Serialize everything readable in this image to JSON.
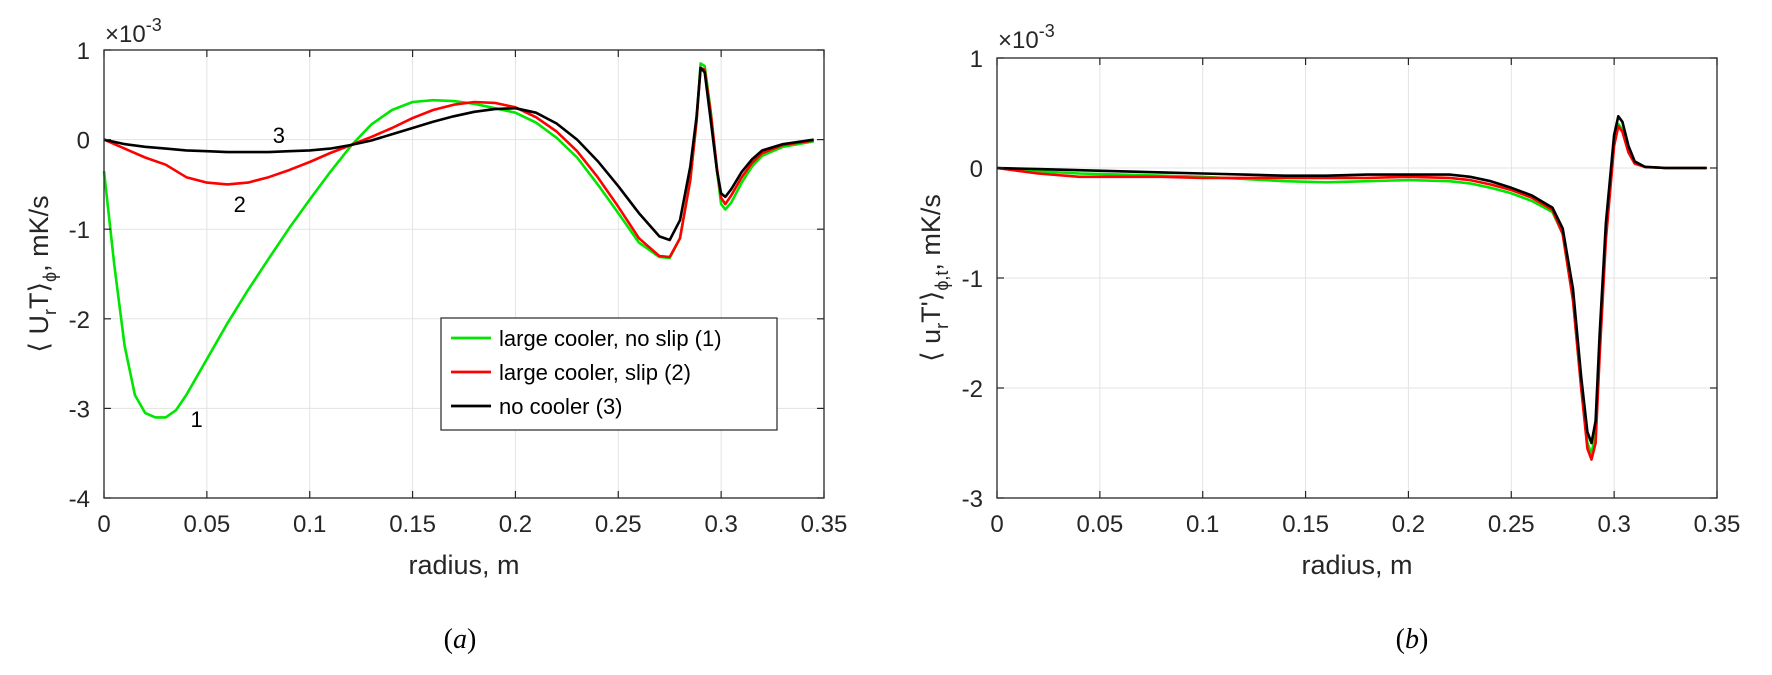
{
  "chart_data": [
    {
      "type": "line",
      "panel_caption": "a",
      "exponent_label": "×10",
      "exponent_power": "-3",
      "xlabel": "radius, m",
      "ylabel": "⟨ U",
      "ylabel_sub": "r",
      "ylabel_mid": "T⟩",
      "ylabel_sub2": "ϕ",
      "ylabel_tail": ", mK/s",
      "xlim": [
        0,
        0.35
      ],
      "ylim": [
        -4,
        1
      ],
      "xticks": [
        0,
        0.05,
        0.1,
        0.15,
        0.2,
        0.25,
        0.3,
        0.35
      ],
      "xtick_labels": [
        "0",
        "0.05",
        "0.1",
        "0.15",
        "0.2",
        "0.25",
        "0.3",
        "0.35"
      ],
      "yticks": [
        -4,
        -3,
        -2,
        -1,
        0,
        1
      ],
      "ytick_labels": [
        "-4",
        "-3",
        "-2",
        "-1",
        "0",
        "1"
      ],
      "grid": true,
      "legend_placement": "lower-right",
      "annotations": [
        {
          "text": "1",
          "x": 0.045,
          "y": -3.12
        },
        {
          "text": "2",
          "x": 0.066,
          "y": -0.72
        },
        {
          "text": "3",
          "x": 0.085,
          "y": 0.05
        }
      ],
      "series": [
        {
          "name": "large cooler, no slip (1)",
          "color": "#00e600",
          "x": [
            0,
            0.005,
            0.01,
            0.015,
            0.02,
            0.025,
            0.03,
            0.035,
            0.04,
            0.05,
            0.06,
            0.07,
            0.08,
            0.09,
            0.1,
            0.11,
            0.12,
            0.13,
            0.14,
            0.15,
            0.16,
            0.17,
            0.18,
            0.19,
            0.2,
            0.21,
            0.22,
            0.23,
            0.24,
            0.25,
            0.26,
            0.27,
            0.275,
            0.28,
            0.285,
            0.288,
            0.29,
            0.292,
            0.295,
            0.298,
            0.3,
            0.302,
            0.305,
            0.31,
            0.315,
            0.32,
            0.33,
            0.345
          ],
          "y": [
            -0.35,
            -1.4,
            -2.3,
            -2.85,
            -3.05,
            -3.1,
            -3.1,
            -3.02,
            -2.85,
            -2.45,
            -2.05,
            -1.68,
            -1.33,
            -0.99,
            -0.67,
            -0.36,
            -0.07,
            0.17,
            0.33,
            0.42,
            0.44,
            0.43,
            0.4,
            0.35,
            0.3,
            0.19,
            0.02,
            -0.2,
            -0.5,
            -0.82,
            -1.15,
            -1.31,
            -1.32,
            -1.1,
            -0.45,
            0.2,
            0.85,
            0.82,
            0.3,
            -0.35,
            -0.72,
            -0.78,
            -0.7,
            -0.48,
            -0.3,
            -0.18,
            -0.08,
            -0.02
          ]
        },
        {
          "name": "large cooler, slip (2)",
          "color": "#ff0000",
          "x": [
            0,
            0.01,
            0.02,
            0.03,
            0.04,
            0.05,
            0.06,
            0.07,
            0.08,
            0.09,
            0.1,
            0.11,
            0.12,
            0.13,
            0.14,
            0.15,
            0.16,
            0.17,
            0.18,
            0.19,
            0.2,
            0.21,
            0.22,
            0.23,
            0.24,
            0.25,
            0.26,
            0.27,
            0.275,
            0.28,
            0.285,
            0.288,
            0.29,
            0.292,
            0.295,
            0.298,
            0.3,
            0.302,
            0.305,
            0.31,
            0.315,
            0.32,
            0.33,
            0.345
          ],
          "y": [
            0,
            -0.1,
            -0.2,
            -0.28,
            -0.42,
            -0.48,
            -0.5,
            -0.48,
            -0.42,
            -0.34,
            -0.25,
            -0.15,
            -0.06,
            0.03,
            0.13,
            0.24,
            0.33,
            0.39,
            0.42,
            0.41,
            0.36,
            0.25,
            0.09,
            -0.13,
            -0.42,
            -0.75,
            -1.1,
            -1.3,
            -1.31,
            -1.1,
            -0.45,
            0.2,
            0.8,
            0.78,
            0.28,
            -0.32,
            -0.65,
            -0.72,
            -0.62,
            -0.42,
            -0.26,
            -0.15,
            -0.06,
            -0.01
          ]
        },
        {
          "name": "no cooler (3)",
          "color": "#000000",
          "x": [
            0,
            0.01,
            0.02,
            0.03,
            0.04,
            0.05,
            0.06,
            0.07,
            0.08,
            0.09,
            0.1,
            0.11,
            0.12,
            0.13,
            0.14,
            0.15,
            0.16,
            0.17,
            0.18,
            0.19,
            0.2,
            0.21,
            0.22,
            0.23,
            0.24,
            0.25,
            0.26,
            0.27,
            0.275,
            0.28,
            0.285,
            0.288,
            0.29,
            0.292,
            0.295,
            0.298,
            0.3,
            0.302,
            0.305,
            0.31,
            0.315,
            0.32,
            0.33,
            0.345
          ],
          "y": [
            0,
            -0.05,
            -0.08,
            -0.1,
            -0.12,
            -0.13,
            -0.14,
            -0.14,
            -0.14,
            -0.13,
            -0.12,
            -0.1,
            -0.06,
            -0.01,
            0.06,
            0.13,
            0.2,
            0.26,
            0.31,
            0.34,
            0.35,
            0.3,
            0.18,
            0.0,
            -0.24,
            -0.52,
            -0.82,
            -1.08,
            -1.12,
            -0.9,
            -0.3,
            0.25,
            0.8,
            0.75,
            0.2,
            -0.35,
            -0.6,
            -0.64,
            -0.55,
            -0.36,
            -0.22,
            -0.12,
            -0.05,
            0
          ]
        }
      ]
    },
    {
      "type": "line",
      "panel_caption": "b",
      "exponent_label": "×10",
      "exponent_power": "-3",
      "xlabel": "radius, m",
      "ylabel": "⟨ u",
      "ylabel_sub": "r",
      "ylabel_mid": "T'⟩",
      "ylabel_sub2": "ϕ,t",
      "ylabel_tail": ", mK/s",
      "xlim": [
        0,
        0.35
      ],
      "ylim": [
        -3,
        1
      ],
      "xticks": [
        0,
        0.05,
        0.1,
        0.15,
        0.2,
        0.25,
        0.3,
        0.35
      ],
      "xtick_labels": [
        "0",
        "0.05",
        "0.1",
        "0.15",
        "0.2",
        "0.25",
        "0.3",
        "0.35"
      ],
      "yticks": [
        -3,
        -2,
        -1,
        0,
        1
      ],
      "ytick_labels": [
        "-3",
        "-2",
        "-1",
        "0",
        "1"
      ],
      "grid": true,
      "series": [
        {
          "name": "",
          "color": "#00e600",
          "x": [
            0,
            0.02,
            0.04,
            0.06,
            0.08,
            0.1,
            0.12,
            0.14,
            0.16,
            0.18,
            0.2,
            0.22,
            0.23,
            0.24,
            0.25,
            0.26,
            0.27,
            0.275,
            0.28,
            0.284,
            0.287,
            0.289,
            0.291,
            0.293,
            0.296,
            0.3,
            0.302,
            0.304,
            0.307,
            0.31,
            0.315,
            0.325,
            0.345
          ],
          "y": [
            0,
            -0.03,
            -0.05,
            -0.06,
            -0.07,
            -0.08,
            -0.1,
            -0.12,
            -0.13,
            -0.12,
            -0.11,
            -0.12,
            -0.14,
            -0.18,
            -0.23,
            -0.3,
            -0.4,
            -0.6,
            -1.2,
            -2.0,
            -2.5,
            -2.6,
            -2.4,
            -1.6,
            -0.6,
            0.25,
            0.4,
            0.35,
            0.15,
            0.05,
            0.01,
            0,
            0
          ]
        },
        {
          "name": "",
          "color": "#ff0000",
          "x": [
            0,
            0.02,
            0.04,
            0.06,
            0.08,
            0.1,
            0.12,
            0.14,
            0.16,
            0.18,
            0.2,
            0.22,
            0.23,
            0.24,
            0.25,
            0.26,
            0.27,
            0.275,
            0.28,
            0.284,
            0.287,
            0.289,
            0.291,
            0.293,
            0.296,
            0.3,
            0.302,
            0.304,
            0.307,
            0.31,
            0.315,
            0.325,
            0.345
          ],
          "y": [
            0,
            -0.05,
            -0.08,
            -0.08,
            -0.08,
            -0.09,
            -0.09,
            -0.09,
            -0.09,
            -0.09,
            -0.08,
            -0.09,
            -0.11,
            -0.15,
            -0.2,
            -0.27,
            -0.38,
            -0.6,
            -1.2,
            -2.0,
            -2.55,
            -2.65,
            -2.5,
            -1.7,
            -0.65,
            0.2,
            0.38,
            0.33,
            0.14,
            0.04,
            0.01,
            0,
            0
          ]
        },
        {
          "name": "",
          "color": "#000000",
          "x": [
            0,
            0.02,
            0.04,
            0.06,
            0.08,
            0.1,
            0.12,
            0.14,
            0.16,
            0.18,
            0.2,
            0.22,
            0.23,
            0.24,
            0.25,
            0.26,
            0.27,
            0.275,
            0.28,
            0.284,
            0.287,
            0.289,
            0.291,
            0.293,
            0.296,
            0.3,
            0.302,
            0.304,
            0.307,
            0.31,
            0.315,
            0.325,
            0.345
          ],
          "y": [
            0,
            -0.01,
            -0.02,
            -0.03,
            -0.04,
            -0.05,
            -0.06,
            -0.07,
            -0.07,
            -0.06,
            -0.06,
            -0.06,
            -0.08,
            -0.12,
            -0.18,
            -0.25,
            -0.36,
            -0.55,
            -1.1,
            -1.9,
            -2.4,
            -2.5,
            -2.3,
            -1.5,
            -0.5,
            0.3,
            0.47,
            0.42,
            0.2,
            0.06,
            0.01,
            0,
            0
          ]
        }
      ]
    }
  ]
}
